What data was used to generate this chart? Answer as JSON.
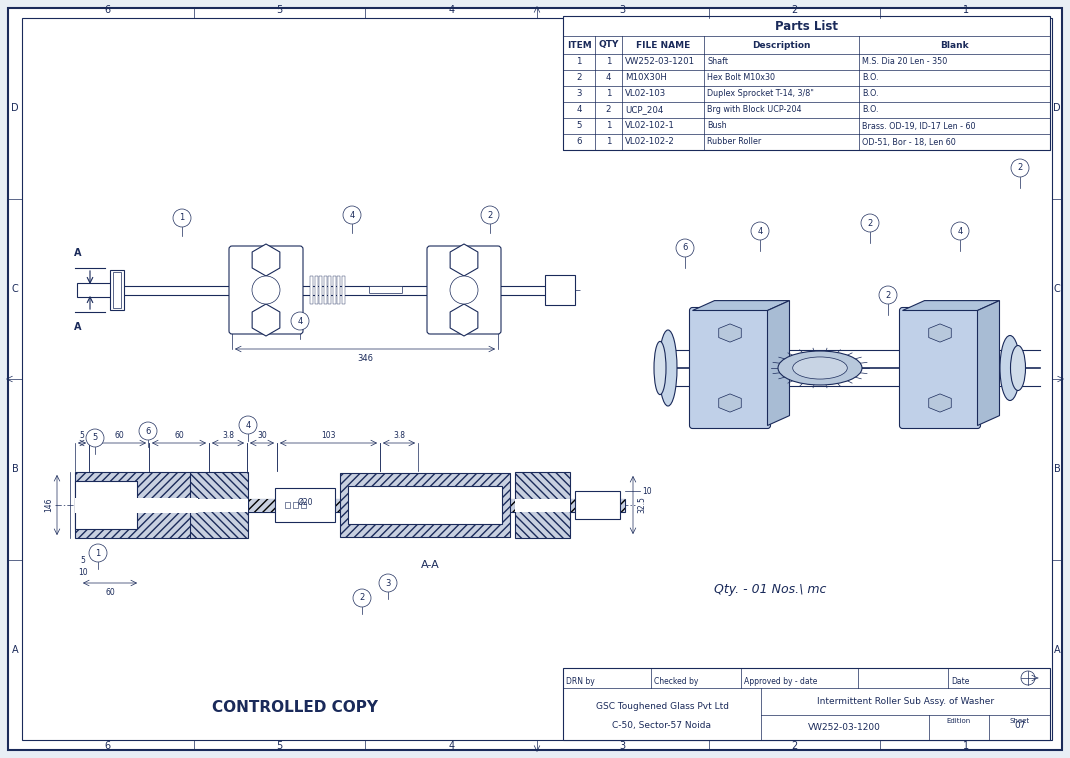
{
  "bg_color": "#e8eef5",
  "line_color": "#1a2a5a",
  "title_text": "CONTROLLED COPY",
  "parts_list": {
    "title": "Parts List",
    "headers": [
      "ITEM",
      "QTY",
      "FILE NAME",
      "Description",
      "Blank"
    ],
    "rows": [
      [
        "1",
        "1",
        "VW252-03-1201",
        "Shaft",
        "M.S. Dia 20 Len - 350"
      ],
      [
        "2",
        "4",
        "M10X30H",
        "Hex Bolt M10x30",
        "B.O."
      ],
      [
        "3",
        "1",
        "VL02-103",
        "Duplex Sprocket T-14, 3/8\"",
        "B.O."
      ],
      [
        "4",
        "2",
        "UCP_204",
        "Brg with Block UCP-204",
        "B.O."
      ],
      [
        "5",
        "1",
        "VL02-102-1",
        "Bush",
        "Brass. OD-19, ID-17 Len - 60"
      ],
      [
        "6",
        "1",
        "VL02-102-2",
        "Rubber Roller",
        "OD-51, Bor - 18, Len 60"
      ]
    ]
  },
  "title_block": {
    "company": "GSC Toughened Glass Pvt Ltd",
    "address": "C-50, Sector-57 Noida",
    "drawing_title": "Intermittent Roller Sub Assy. of Washer",
    "drawing_no": "VW252-03-1200",
    "edition_label": "Edition",
    "sheet_label": "Sheet",
    "sheet_no": "07",
    "drn_by": "DRN by",
    "checked_by": "Checked by",
    "approved": "Approved by - date",
    "date": "Date"
  },
  "border_labels": [
    "6",
    "5",
    "4",
    "3",
    "2",
    "1"
  ],
  "border_rows": [
    "D",
    "C",
    "B",
    "A"
  ],
  "qty_text": "Qty. - 01 Nos.\\ mc",
  "section_label": "A-A"
}
